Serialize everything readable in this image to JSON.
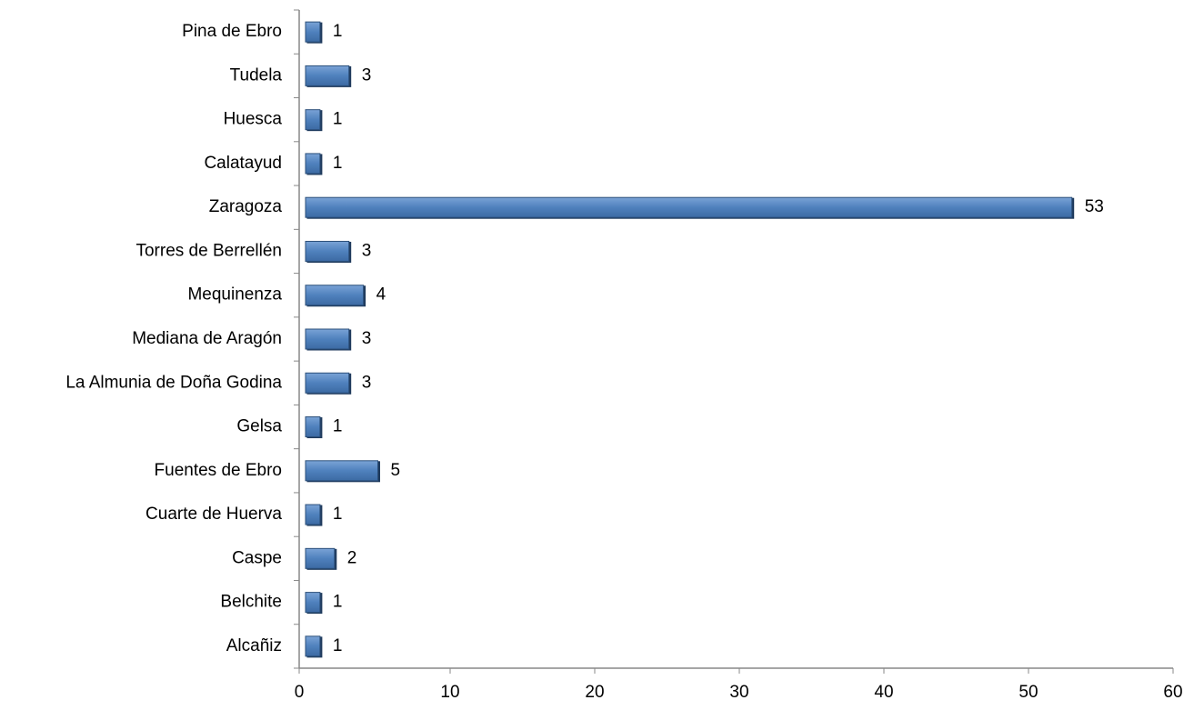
{
  "chart_data": {
    "type": "bar",
    "orientation": "horizontal",
    "categories": [
      "Alcañiz",
      "Belchite",
      "Caspe",
      "Cuarte de Huerva",
      "Fuentes de Ebro",
      "Gelsa",
      "La Almunia de Doña Godina",
      "Mediana de Aragón",
      "Mequinenza",
      "Torres de Berrellén",
      "Zaragoza",
      "Calatayud",
      "Huesca",
      "Tudela",
      "Pina de Ebro"
    ],
    "values": [
      1,
      1,
      2,
      1,
      5,
      1,
      3,
      3,
      4,
      3,
      53,
      1,
      1,
      3,
      1
    ],
    "color": "#4f81bd",
    "xlim": [
      0,
      60
    ],
    "xticks": [
      0,
      10,
      20,
      30,
      40,
      50,
      60
    ]
  }
}
